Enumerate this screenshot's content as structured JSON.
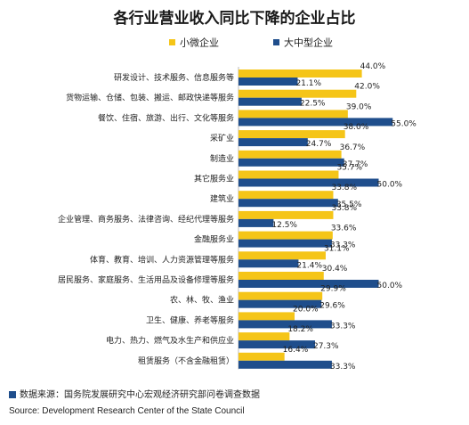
{
  "chart_data": {
    "type": "bar",
    "orientation": "horizontal",
    "title": "各行业营业收入同比下降的企业占比",
    "categories": [
      "研发设计、技术服务、信息服务等",
      "货物运输、仓储、包装、搬运、邮政快递等服务",
      "餐饮、住宿、旅游、出行、文化等服务",
      "采矿业",
      "制造业",
      "其它服务业",
      "建筑业",
      "企业管理、商务服务、法律咨询、经纪代理等服务",
      "金融服务业",
      "体育、教育、培训、人力资源管理等服务",
      "居民服务、家庭服务、生活用品及设备修理等服务",
      "农、林、牧、渔业",
      "卫生、健康、养老等服务",
      "电力、热力、燃气及水生产和供应业",
      "租赁服务（不含金融租赁）"
    ],
    "series": [
      {
        "name": "小微企业",
        "color": "#f5c518",
        "values": [
          44.0,
          42.0,
          39.0,
          38.0,
          36.7,
          35.7,
          33.8,
          33.8,
          33.6,
          31.1,
          30.4,
          29.9,
          20.0,
          18.2,
          16.4
        ],
        "labels": [
          "44.0%",
          "42.0%",
          "39.0%",
          "38.0%",
          "36.7%",
          "35.7%",
          "33.8%",
          "33.8%",
          "33.6%",
          "31.1%",
          "30.4%",
          "29.9%",
          "20.0%",
          "18.2%",
          "16.4%"
        ]
      },
      {
        "name": "大中型企业",
        "color": "#1f4e8c",
        "values": [
          21.1,
          22.5,
          55.0,
          24.7,
          37.7,
          50.0,
          35.5,
          12.5,
          33.3,
          21.4,
          50.0,
          29.6,
          33.3,
          27.3,
          33.3
        ],
        "labels": [
          "21.1%",
          "22.5%",
          "55.0%",
          "24.7%",
          "37.7%",
          "50.0%",
          "35.5%",
          "12.5%",
          "33.3%",
          "21.4%",
          "50.0%",
          "29.6%",
          "33.3%",
          "27.3%",
          "33.3%"
        ]
      }
    ],
    "xlim": [
      0,
      55
    ],
    "legend": "top"
  },
  "footer": {
    "data_source": "数据来源：国务院发展研究中心宏观经济研究部问卷调查数据",
    "source_en": "Source: Development Research Center of the State Council"
  }
}
